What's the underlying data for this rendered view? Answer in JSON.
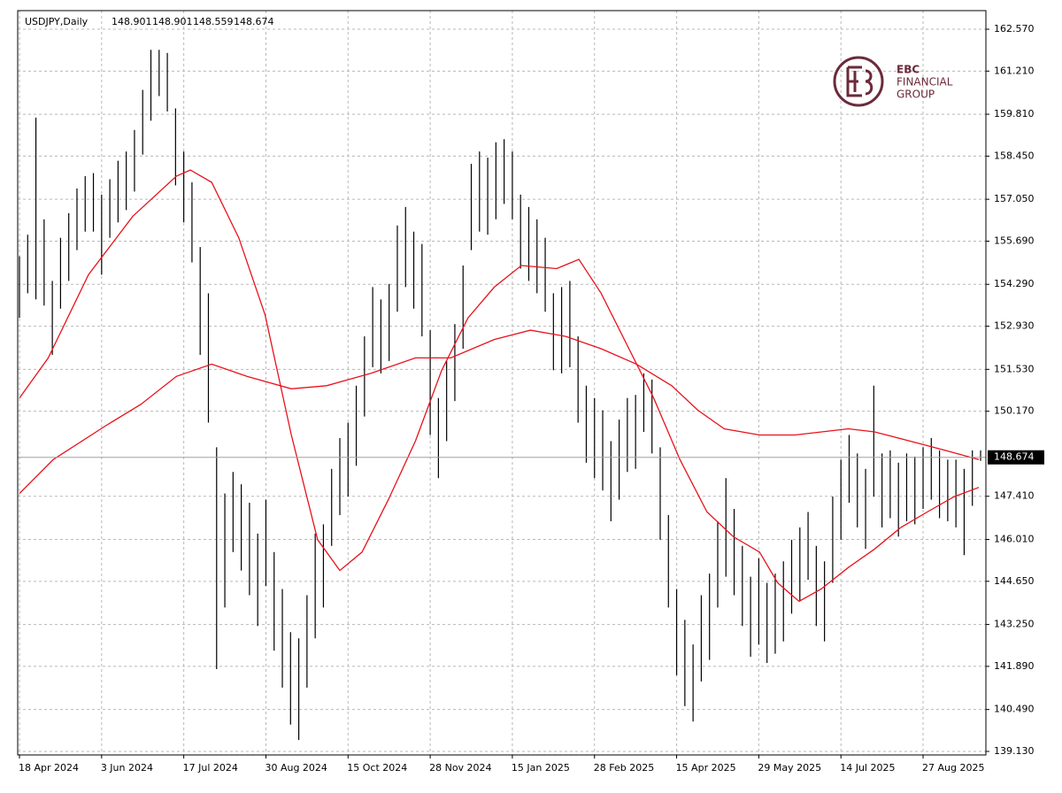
{
  "chart_data": {
    "type": "ohlc",
    "title": "USDJPY,Daily",
    "last_ohlc": [
      148.901,
      148.901,
      148.559,
      148.674
    ],
    "watermark": [
      "EBC",
      "FINANCIAL",
      "GROUP"
    ],
    "bar_color": "#000000",
    "grid": true,
    "categories": [
      "18 Apr 2024",
      null,
      null,
      null,
      null,
      null,
      null,
      null,
      null,
      null,
      "3 Jun 2024",
      null,
      null,
      null,
      null,
      null,
      null,
      null,
      null,
      null,
      "17 Jul 2024",
      null,
      null,
      null,
      null,
      null,
      null,
      null,
      null,
      null,
      "30 Aug 2024",
      null,
      null,
      null,
      null,
      null,
      null,
      null,
      null,
      null,
      "15 Oct 2024",
      null,
      null,
      null,
      null,
      null,
      null,
      null,
      null,
      null,
      "28 Nov 2024",
      null,
      null,
      null,
      null,
      null,
      null,
      null,
      null,
      null,
      "15 Jan 2025",
      null,
      null,
      null,
      null,
      null,
      null,
      null,
      null,
      null,
      "28 Feb 2025",
      null,
      null,
      null,
      null,
      null,
      null,
      null,
      null,
      null,
      "15 Apr 2025",
      null,
      null,
      null,
      null,
      null,
      null,
      null,
      null,
      null,
      "29 May 2025",
      null,
      null,
      null,
      null,
      null,
      null,
      null,
      null,
      null,
      "14 Jul 2025",
      null,
      null,
      null,
      null,
      null,
      null,
      null,
      null,
      null,
      "27 Aug 2025",
      null,
      null,
      null,
      null,
      null,
      null,
      null
    ],
    "high": [
      155.2,
      155.9,
      159.7,
      156.4,
      154.4,
      155.8,
      156.6,
      157.4,
      157.8,
      157.9,
      157.2,
      157.7,
      158.3,
      158.6,
      159.3,
      160.6,
      161.9,
      161.9,
      161.8,
      160.0,
      158.6,
      157.6,
      155.5,
      154.0,
      149.0,
      147.5,
      148.2,
      147.8,
      147.2,
      146.2,
      147.3,
      145.6,
      144.4,
      143.0,
      142.8,
      144.2,
      146.2,
      146.5,
      148.3,
      149.3,
      149.8,
      151.0,
      152.6,
      154.2,
      153.8,
      154.3,
      156.2,
      156.8,
      156.0,
      155.6,
      152.8,
      150.6,
      151.8,
      153.0,
      154.9,
      158.2,
      158.6,
      158.4,
      158.9,
      159.0,
      158.6,
      157.2,
      156.8,
      156.4,
      155.8,
      154.0,
      154.2,
      154.4,
      152.6,
      151.0,
      150.6,
      150.2,
      149.2,
      149.9,
      150.6,
      150.7,
      151.4,
      151.2,
      149.0,
      146.8,
      144.4,
      143.4,
      142.6,
      144.2,
      144.9,
      146.6,
      148.0,
      147.0,
      145.8,
      144.8,
      145.4,
      144.6,
      144.9,
      145.3,
      146.0,
      146.4,
      146.9,
      145.8,
      145.3,
      147.4,
      148.6,
      149.4,
      148.8,
      148.3,
      151.0,
      148.8,
      148.9,
      148.5,
      148.8,
      148.7,
      149.0,
      149.3,
      148.9,
      148.6,
      148.6,
      148.3,
      148.9,
      148.901
    ],
    "low": [
      153.2,
      154.0,
      153.8,
      153.6,
      152.0,
      153.5,
      154.4,
      155.4,
      156.0,
      156.0,
      154.6,
      155.8,
      156.3,
      156.7,
      157.3,
      158.5,
      159.6,
      160.4,
      159.9,
      157.5,
      156.3,
      155.0,
      152.0,
      149.8,
      141.8,
      143.8,
      145.6,
      145.0,
      144.2,
      143.2,
      144.5,
      142.4,
      141.2,
      140.0,
      139.5,
      141.2,
      142.8,
      143.8,
      145.8,
      146.8,
      147.4,
      148.4,
      150.0,
      151.6,
      151.4,
      151.8,
      153.4,
      154.2,
      153.5,
      152.6,
      149.4,
      148.0,
      149.2,
      150.5,
      152.2,
      155.4,
      156.0,
      155.9,
      156.4,
      156.9,
      156.4,
      154.8,
      154.4,
      154.0,
      153.4,
      151.5,
      151.4,
      151.6,
      149.8,
      148.5,
      148.0,
      147.6,
      146.6,
      147.3,
      148.2,
      148.3,
      149.5,
      148.8,
      146.0,
      143.8,
      141.6,
      140.6,
      140.1,
      141.4,
      142.1,
      143.8,
      144.8,
      144.2,
      143.2,
      142.2,
      142.6,
      142.0,
      142.3,
      142.7,
      143.6,
      144.0,
      144.7,
      143.2,
      142.7,
      144.6,
      146.0,
      147.2,
      146.4,
      145.7,
      147.4,
      146.4,
      146.7,
      146.1,
      146.6,
      146.5,
      147.0,
      147.3,
      146.7,
      146.6,
      146.4,
      145.5,
      147.1,
      148.559
    ],
    "series": [
      {
        "color": "#e8121b",
        "x": [
          0,
          3.5,
          8.4,
          13.8,
          19.1,
          20.8,
          23.4,
          26.7,
          29.9,
          33.1,
          36.3,
          39,
          41.7,
          44.9,
          48.2,
          51.4,
          54.6,
          57.8,
          61.1,
          65.4,
          68.1,
          70.8,
          74,
          77.2,
          80.4,
          83.7,
          86.9,
          90.1,
          92.3,
          94.9,
          97.6,
          100.9,
          104.1,
          107.3,
          110.5,
          113.8,
          116.8
        ],
        "values": [
          150.6,
          151.9,
          154.6,
          156.5,
          157.8,
          158.0,
          157.6,
          155.8,
          153.3,
          149.4,
          146.0,
          145.0,
          145.6,
          147.3,
          149.2,
          151.5,
          153.2,
          154.2,
          154.9,
          154.8,
          155.1,
          154.0,
          152.3,
          150.6,
          148.6,
          146.9,
          146.1,
          145.6,
          144.6,
          144.0,
          144.4,
          145.1,
          145.7,
          146.4,
          146.9,
          147.4,
          147.7
        ]
      },
      {
        "color": "#e8121b",
        "x": [
          0,
          4.1,
          10.5,
          14.8,
          19.1,
          23.4,
          27.7,
          33.1,
          37.4,
          42.8,
          48.2,
          52.5,
          57.8,
          62.2,
          66.5,
          70.8,
          75.1,
          79.4,
          82.6,
          85.8,
          90.1,
          94.4,
          100.9,
          104.1,
          108.4,
          112.7,
          116.8
        ],
        "values": [
          147.5,
          148.6,
          149.7,
          150.4,
          151.3,
          151.7,
          151.3,
          150.9,
          151.0,
          151.4,
          151.9,
          151.9,
          152.5,
          152.8,
          152.6,
          152.2,
          151.7,
          151.0,
          150.2,
          149.6,
          149.4,
          149.4,
          149.6,
          149.5,
          149.2,
          148.9,
          148.6
        ]
      }
    ],
    "ylim": [
      139.015,
      163.173
    ],
    "yticks": [
      {
        "value": 139.13,
        "label": "139.130"
      },
      {
        "value": 140.49,
        "label": "140.490"
      },
      {
        "value": 141.89,
        "label": "141.890"
      },
      {
        "value": 143.25,
        "label": "143.250"
      },
      {
        "value": 144.65,
        "label": "144.650"
      },
      {
        "value": 146.01,
        "label": "146.010"
      },
      {
        "value": 147.41,
        "label": "147.410"
      },
      {
        "value": 150.17,
        "label": "150.170"
      },
      {
        "value": 151.53,
        "label": "151.530"
      },
      {
        "value": 152.93,
        "label": "152.930"
      },
      {
        "value": 154.29,
        "label": "154.290"
      },
      {
        "value": 155.69,
        "label": "155.690"
      },
      {
        "value": 157.05,
        "label": "157.050"
      },
      {
        "value": 158.45,
        "label": "158.450"
      },
      {
        "value": 159.81,
        "label": "159.810"
      },
      {
        "value": 161.21,
        "label": "161.210"
      },
      {
        "value": 162.57,
        "label": "162.570"
      }
    ]
  }
}
